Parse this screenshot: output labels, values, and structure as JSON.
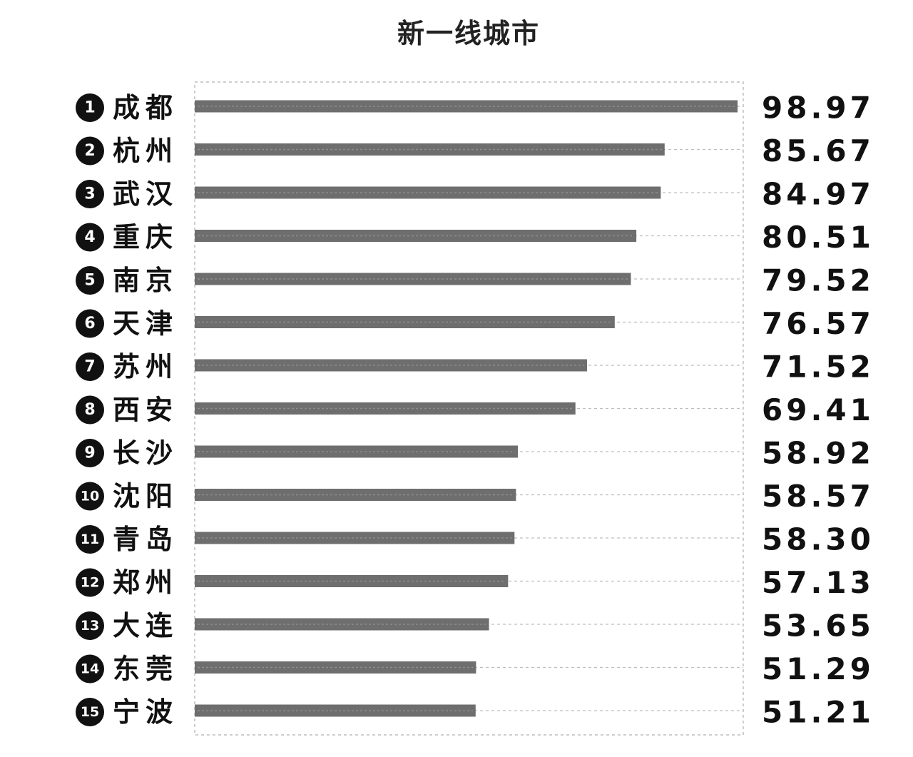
{
  "chart_data": {
    "type": "bar",
    "orientation": "horizontal",
    "title": "新一线城市",
    "ranks": [
      "1",
      "2",
      "3",
      "4",
      "5",
      "6",
      "7",
      "8",
      "9",
      "10",
      "11",
      "12",
      "13",
      "14",
      "15"
    ],
    "categories": [
      "成都",
      "杭州",
      "武汉",
      "重庆",
      "南京",
      "天津",
      "苏州",
      "西安",
      "长沙",
      "沈阳",
      "青岛",
      "郑州",
      "大连",
      "东莞",
      "宁波"
    ],
    "values": [
      98.97,
      85.67,
      84.97,
      80.51,
      79.52,
      76.57,
      71.52,
      69.41,
      58.92,
      58.57,
      58.3,
      57.13,
      53.65,
      51.29,
      51.21
    ],
    "value_labels": [
      "98.97",
      "85.67",
      "84.97",
      "80.51",
      "79.52",
      "76.57",
      "71.52",
      "69.41",
      "58.92",
      "58.57",
      "58.30",
      "57.13",
      "53.65",
      "51.29",
      "51.21"
    ],
    "xlim": [
      0,
      100
    ],
    "grid": true,
    "colors": {
      "bar": "#6e6e6e",
      "rank_badge": "#111111",
      "grid": "#bdbdbd"
    }
  }
}
